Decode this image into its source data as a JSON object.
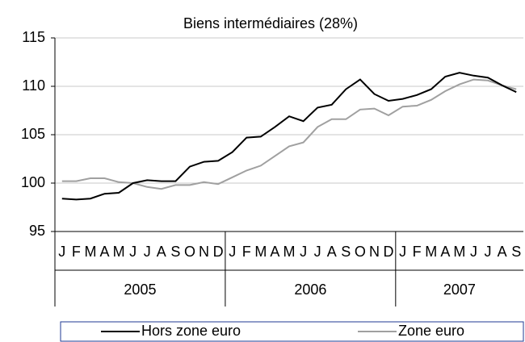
{
  "chart_data": {
    "type": "line",
    "title": "Biens intermédiaires (28%)",
    "categories": [
      "J",
      "F",
      "M",
      "A",
      "M",
      "J",
      "J",
      "A",
      "S",
      "O",
      "N",
      "D",
      "J",
      "F",
      "M",
      "A",
      "M",
      "J",
      "J",
      "A",
      "S",
      "O",
      "N",
      "D",
      "J",
      "F",
      "M",
      "A",
      "M",
      "J",
      "J",
      "A",
      "S"
    ],
    "years": [
      "2005",
      "2006",
      "2007"
    ],
    "series": [
      {
        "name": "Hors zone euro",
        "color": "#000000",
        "values": [
          98.4,
          98.3,
          98.4,
          98.9,
          99.0,
          100.0,
          100.3,
          100.2,
          100.2,
          101.7,
          102.2,
          102.3,
          103.2,
          104.7,
          104.8,
          105.8,
          106.9,
          106.4,
          107.8,
          108.1,
          109.7,
          110.7,
          109.2,
          108.5,
          108.7,
          109.1,
          109.7,
          111.0,
          111.4,
          111.1,
          110.9,
          110.1,
          109.4
        ]
      },
      {
        "name": "Zone euro",
        "color": "#a0a0a0",
        "values": [
          100.2,
          100.2,
          100.5,
          100.5,
          100.1,
          100.0,
          99.6,
          99.4,
          99.8,
          99.8,
          100.1,
          99.9,
          100.6,
          101.3,
          101.8,
          102.8,
          103.8,
          104.2,
          105.8,
          106.6,
          106.6,
          107.6,
          107.7,
          107.0,
          107.9,
          108.0,
          108.6,
          109.5,
          110.2,
          110.7,
          110.6,
          110.1,
          109.7
        ]
      }
    ],
    "ylim": [
      95,
      115
    ],
    "yticks": [
      95,
      100,
      105,
      110,
      115
    ],
    "grid": true,
    "legend": "bottom"
  }
}
